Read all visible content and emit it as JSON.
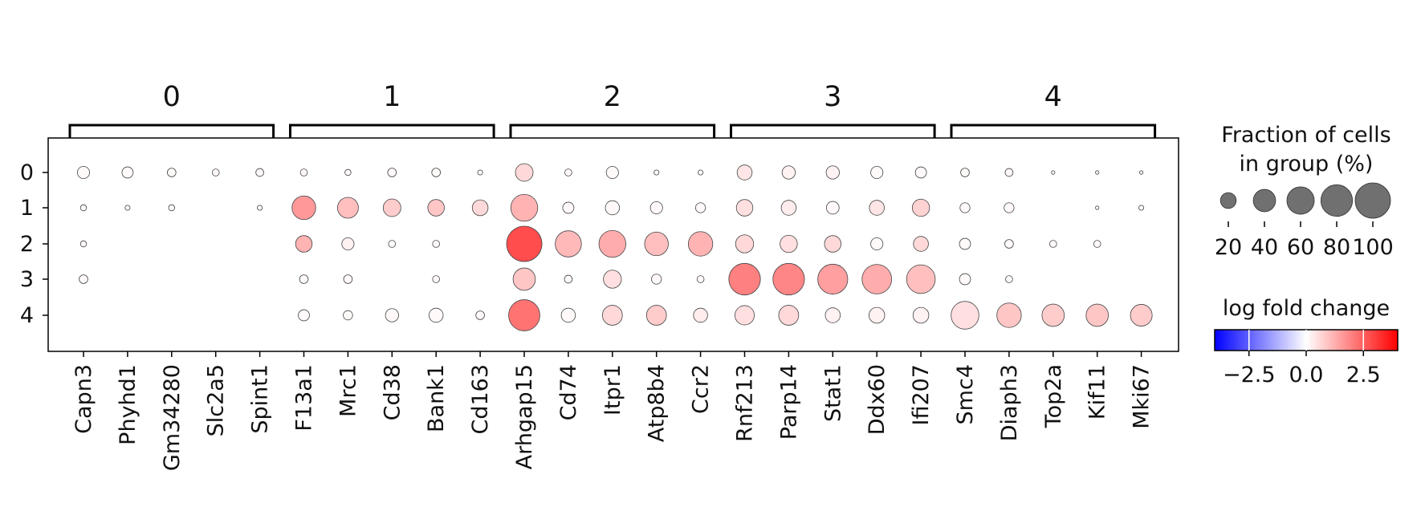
{
  "chart_data": {
    "type": "dotplot",
    "genes": [
      "Capn3",
      "Phyhd1",
      "Gm34280",
      "Slc2a5",
      "Spint1",
      "F13a1",
      "Mrc1",
      "Cd38",
      "Bank1",
      "Cd163",
      "Arhgap15",
      "Cd74",
      "Itpr1",
      "Atp8b4",
      "Ccr2",
      "Rnf213",
      "Parp14",
      "Stat1",
      "Ddx60",
      "Ifi207",
      "Smc4",
      "Diaph3",
      "Top2a",
      "Kif11",
      "Mki67"
    ],
    "gene_groups": [
      {
        "label": "0",
        "genes": [
          "Capn3",
          "Phyhd1",
          "Gm34280",
          "Slc2a5",
          "Spint1"
        ]
      },
      {
        "label": "1",
        "genes": [
          "F13a1",
          "Mrc1",
          "Cd38",
          "Bank1",
          "Cd163"
        ]
      },
      {
        "label": "2",
        "genes": [
          "Arhgap15",
          "Cd74",
          "Itpr1",
          "Atp8b4",
          "Ccr2"
        ]
      },
      {
        "label": "3",
        "genes": [
          "Rnf213",
          "Parp14",
          "Stat1",
          "Ddx60",
          "Ifi207"
        ]
      },
      {
        "label": "4",
        "genes": [
          "Smc4",
          "Diaph3",
          "Top2a",
          "Kif11",
          "Mki67"
        ]
      }
    ],
    "groups": [
      "0",
      "1",
      "2",
      "3",
      "4"
    ],
    "fraction_pct": [
      [
        12,
        10,
        6,
        4,
        5,
        4,
        3,
        6,
        6,
        2,
        25,
        4,
        12,
        2,
        2,
        18,
        14,
        14,
        12,
        10,
        6,
        5,
        1,
        1,
        1
      ],
      [
        3,
        2,
        3,
        0,
        2,
        45,
        35,
        25,
        22,
        20,
        58,
        10,
        16,
        12,
        8,
        22,
        18,
        13,
        18,
        24,
        8,
        8,
        0,
        1,
        2
      ],
      [
        3,
        0,
        0,
        0,
        0,
        22,
        12,
        4,
        4,
        0,
        100,
        55,
        58,
        45,
        48,
        26,
        24,
        22,
        12,
        18,
        10,
        6,
        4,
        4,
        0
      ],
      [
        6,
        0,
        0,
        0,
        0,
        6,
        6,
        0,
        4,
        0,
        40,
        5,
        26,
        8,
        4,
        80,
        80,
        72,
        70,
        66,
        10,
        4,
        0,
        0,
        0
      ],
      [
        0,
        0,
        0,
        0,
        0,
        10,
        7,
        14,
        16,
        6,
        78,
        16,
        32,
        32,
        16,
        30,
        32,
        18,
        20,
        20,
        62,
        48,
        40,
        40,
        38
      ]
    ],
    "log_fold_change": [
      [
        0.1,
        0.1,
        0.1,
        0.1,
        0.1,
        0.1,
        0.1,
        0.1,
        0.1,
        0.1,
        0.6,
        0.1,
        0.1,
        0.1,
        0.1,
        0.4,
        0.2,
        0.2,
        0.1,
        0.1,
        0.1,
        0.1,
        0.1,
        0.1,
        0.1
      ],
      [
        0.1,
        0.1,
        0.1,
        0.1,
        0.1,
        1.6,
        1.0,
        0.8,
        0.9,
        0.6,
        1.2,
        0.1,
        0.1,
        0.1,
        0.1,
        0.5,
        0.3,
        0.1,
        0.4,
        0.7,
        0.1,
        0.1,
        0.1,
        0.1,
        0.1
      ],
      [
        0.1,
        0.1,
        0.1,
        0.1,
        0.1,
        1.2,
        0.2,
        0.1,
        0.1,
        0.1,
        2.8,
        1.1,
        1.3,
        1.0,
        1.2,
        0.6,
        0.5,
        0.6,
        0.1,
        0.6,
        0.1,
        0.1,
        0.1,
        0.1,
        0.1
      ],
      [
        0.1,
        0.1,
        0.1,
        0.1,
        0.1,
        0.1,
        0.1,
        0.1,
        0.1,
        0.1,
        0.9,
        0.1,
        0.5,
        0.1,
        0.1,
        2.0,
        1.9,
        1.5,
        1.3,
        1.0,
        0.1,
        0.1,
        0.1,
        0.1,
        0.1
      ],
      [
        0.1,
        0.1,
        0.1,
        0.1,
        0.1,
        0.1,
        0.1,
        0.1,
        0.1,
        0.1,
        2.2,
        0.1,
        0.6,
        0.8,
        0.3,
        0.5,
        0.6,
        0.2,
        0.2,
        0.2,
        0.5,
        0.9,
        0.8,
        0.9,
        0.8
      ]
    ],
    "size_legend": {
      "title_line1": "Fraction of cells",
      "title_line2": "in group (%)",
      "values": [
        20,
        40,
        60,
        80,
        100
      ],
      "labels": [
        "20",
        "40",
        "60",
        "80",
        "100"
      ]
    },
    "color_legend": {
      "title": "log fold change",
      "colormap": "bwr",
      "vmin": -4.0,
      "vmax": 4.0,
      "ticks": [
        -2.5,
        0.0,
        2.5
      ],
      "tick_labels": [
        "−2.5",
        "0.0",
        "2.5"
      ]
    },
    "colors": {
      "negative": "#0000ff",
      "neutral": "#ffffff",
      "positive": "#ff0000",
      "size_legend_dot": "#707070",
      "dot_edge": "#444444"
    }
  }
}
